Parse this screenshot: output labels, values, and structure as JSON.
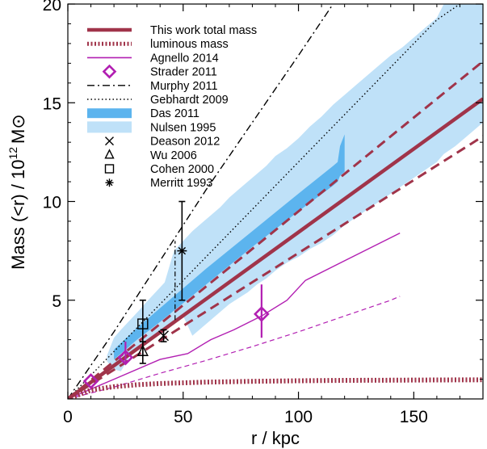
{
  "chart_data": {
    "type": "line",
    "title": "",
    "xlabel": "r / kpc",
    "ylabel": "Mass (<r) / 10^12 M⊙",
    "ylabel_parts": {
      "main": "Mass (<r) / 10",
      "exponent": "12",
      "unit": "M⊙"
    },
    "xlim": [
      0,
      180
    ],
    "ylim": [
      0,
      20
    ],
    "x_ticks": [
      0,
      50,
      100,
      150
    ],
    "y_ticks": [
      5,
      10,
      15,
      20
    ],
    "legend_position": "top-left",
    "colors": {
      "this_work": "#a0344a",
      "agnello": "#b21fb2",
      "strader": "#b21fb2",
      "das": "#5cb4ee",
      "nulsen": "#bfe1f8",
      "black": "#000000"
    },
    "legend": [
      {
        "label": "This work total mass",
        "style": "thick-solid"
      },
      {
        "label": "luminous mass",
        "style": "dotted-thick"
      },
      {
        "label": "Agnello 2014",
        "style": "thin-solid-magenta"
      },
      {
        "label": "Strader 2011",
        "style": "diamond-magenta"
      },
      {
        "label": "Murphy 2011",
        "style": "dash-dot"
      },
      {
        "label": "Gebhardt 2009",
        "style": "dotted"
      },
      {
        "label": "Das 2011",
        "style": "band-mid-blue"
      },
      {
        "label": "Nulsen 1995",
        "style": "band-light-blue"
      },
      {
        "label": "Deason 2012",
        "style": "x-marker"
      },
      {
        "label": "Wu 2006",
        "style": "triangle-marker"
      },
      {
        "label": "Cohen 2000",
        "style": "square-marker"
      },
      {
        "label": "Merritt 1993",
        "style": "asterisk-marker"
      }
    ],
    "series": [
      {
        "name": "This work total mass",
        "x": [
          0,
          180
        ],
        "y": [
          0,
          15.2
        ]
      },
      {
        "name": "This work upper bound",
        "x": [
          0,
          180
        ],
        "y": [
          0,
          17.1
        ]
      },
      {
        "name": "This work lower bound",
        "x": [
          0,
          180
        ],
        "y": [
          0,
          13.3
        ]
      },
      {
        "name": "luminous mass",
        "x": [
          0,
          10,
          20,
          30,
          40,
          60,
          80,
          100,
          120,
          140,
          160,
          180
        ],
        "y": [
          0,
          0.45,
          0.62,
          0.72,
          0.78,
          0.85,
          0.89,
          0.92,
          0.94,
          0.95,
          0.96,
          0.97
        ]
      },
      {
        "name": "Agnello 2014",
        "x": [
          0,
          20,
          40,
          52,
          62,
          72,
          84,
          95,
          103,
          120,
          144
        ],
        "y": [
          0,
          1.0,
          2.0,
          2.3,
          3.0,
          3.5,
          4.2,
          5.0,
          6.0,
          7.0,
          8.4
        ]
      },
      {
        "name": "Agnello 2014 lower (dashed)",
        "x": [
          0,
          20,
          40,
          60,
          80,
          100,
          120,
          140,
          144
        ],
        "y": [
          0,
          0.6,
          1.3,
          1.95,
          2.65,
          3.4,
          4.2,
          5.0,
          5.2
        ]
      },
      {
        "name": "Murphy 2011",
        "x": [
          0,
          20,
          40,
          60,
          80,
          100,
          115
        ],
        "y": [
          0,
          3.4,
          7.0,
          10.6,
          14.0,
          17.4,
          20.0
        ]
      },
      {
        "name": "Gebhardt 2009",
        "x": [
          0,
          40,
          80,
          120,
          160,
          170
        ],
        "y": [
          0,
          4.8,
          9.6,
          14.4,
          19.2,
          20.0
        ]
      },
      {
        "name": "Das 2011 band",
        "x": [
          20,
          30,
          40,
          60,
          80,
          100,
          115,
          117,
          118,
          120
        ],
        "y_low": [
          2.0,
          3.0,
          3.9,
          5.8,
          7.7,
          9.5,
          10.8,
          11.0,
          11.3,
          11.5
        ],
        "y_high": [
          2.5,
          3.6,
          4.6,
          6.6,
          8.5,
          10.4,
          11.8,
          12.0,
          12.8,
          13.4
        ]
      },
      {
        "name": "Nulsen 1995 band",
        "x": [
          17,
          20,
          23,
          27,
          31,
          34,
          38,
          42,
          46,
          50,
          54,
          58,
          62,
          66,
          70,
          74,
          78,
          82,
          86,
          90,
          95,
          100,
          105,
          110,
          115,
          120,
          125,
          130,
          135,
          140,
          145,
          150,
          155,
          160,
          163,
          168,
          172,
          176,
          180
        ],
        "y_low": [
          1.9,
          1.5,
          1.4,
          2.2,
          2.5,
          2.8,
          3.2,
          3.6,
          3.9,
          4.2,
          3.2,
          3.6,
          4.0,
          4.4,
          4.8,
          5.1,
          5.4,
          5.8,
          6.1,
          6.5,
          6.9,
          7.2,
          7.6,
          7.9,
          8.3,
          8.8,
          9.2,
          9.6,
          10.0,
          10.4,
          10.8,
          11.2,
          11.6,
          12.0,
          12.4,
          12.8,
          13.2,
          13.6,
          14.0
        ],
        "y_high": [
          2.2,
          3.1,
          3.5,
          4.0,
          4.5,
          4.9,
          5.4,
          5.9,
          7.5,
          8.0,
          8.5,
          8.9,
          9.3,
          9.7,
          10.2,
          10.6,
          11.0,
          11.4,
          11.8,
          12.3,
          12.7,
          13.2,
          13.8,
          14.3,
          14.9,
          15.4,
          15.9,
          16.4,
          16.9,
          17.4,
          17.8,
          18.3,
          18.8,
          19.3,
          20.0,
          20.0,
          20.0,
          20.0,
          20.0
        ]
      }
    ],
    "points": [
      {
        "name": "Strader 2011",
        "marker": "diamond",
        "x": 10,
        "y": 0.9,
        "yerr_low": 0.9,
        "yerr_high": 0.9
      },
      {
        "name": "Strader 2011",
        "marker": "diamond",
        "x": 25,
        "y": 2.1,
        "yerr_low": 1.8,
        "yerr_high": 2.9
      },
      {
        "name": "Strader 2011",
        "marker": "diamond",
        "x": 84,
        "y": 4.3,
        "yerr_low": 3.1,
        "yerr_high": 5.8
      },
      {
        "name": "Deason 2012",
        "marker": "x",
        "x": 41.5,
        "y": 3.2,
        "yerr_low": 2.9,
        "yerr_high": 3.5
      },
      {
        "name": "Wu 2006",
        "marker": "triangle",
        "x": 32.5,
        "y": 2.4,
        "yerr_low": 1.8,
        "yerr_high": 2.9
      },
      {
        "name": "Cohen 2000",
        "marker": "square",
        "x": 32.5,
        "y": 3.8,
        "yerr_low": 2.2,
        "yerr_high": 5.0
      },
      {
        "name": "Merritt 1993",
        "marker": "asterisk",
        "x": 49.5,
        "y": 7.5,
        "yerr_low": 5.0,
        "yerr_high": 10.0
      }
    ],
    "annotations": [
      {
        "name": "Murphy 2011 interval",
        "x": 46.5,
        "y_low": 4.0,
        "y_high": 8.0
      }
    ]
  }
}
